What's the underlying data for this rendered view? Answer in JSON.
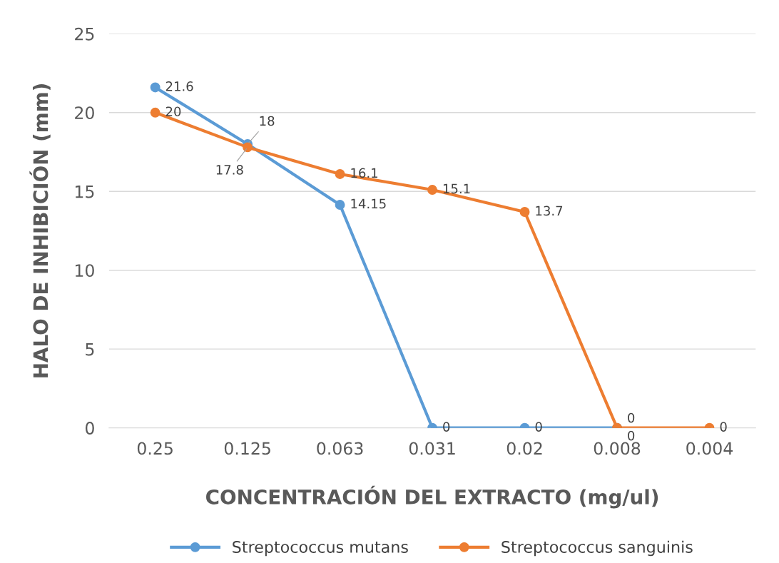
{
  "chart_data": {
    "type": "line",
    "xlabel": "CONCENTRACIÓN DEL EXTRACTO (mg/ul)",
    "ylabel": "HALO DE INHIBICIÓN (mm)",
    "categories": [
      "0.25",
      "0.125",
      "0.063",
      "0.031",
      "0.02",
      "0.008",
      "0.004"
    ],
    "series": [
      {
        "name": "Streptococcus mutans",
        "color": "#5b9bd5",
        "values": [
          21.6,
          18,
          14.15,
          0,
          0,
          0,
          null
        ]
      },
      {
        "name": "Streptococcus sanguinis",
        "color": "#ed7d31",
        "values": [
          20,
          17.8,
          16.1,
          15.1,
          13.7,
          0,
          0
        ]
      }
    ],
    "ylim": [
      0,
      25
    ],
    "yticks": [
      0,
      5,
      10,
      15,
      20,
      25
    ],
    "grid": "y",
    "legend": "bottom",
    "marker": "circle",
    "line_style": "solid",
    "data_labels": true
  }
}
